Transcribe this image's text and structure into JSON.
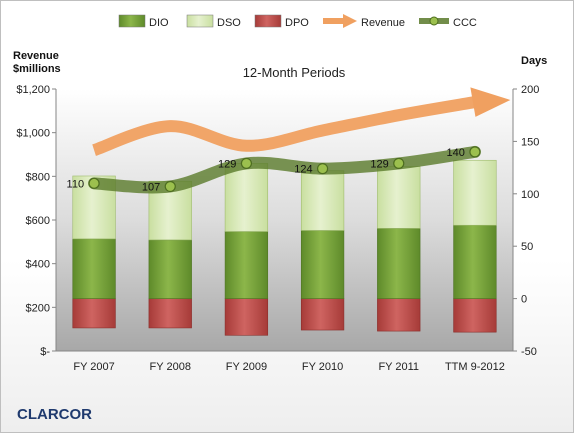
{
  "company": "CLARCOR",
  "chart_data": {
    "type": "bar",
    "title": "12-Month Periods",
    "categories": [
      "FY 2007",
      "FY 2008",
      "FY 2009",
      "FY 2010",
      "FY 2011",
      "TTM 9-2012"
    ],
    "left_axis": {
      "label_line1": "Revenue",
      "label_line2": "$millions",
      "min": 0,
      "max": 1200,
      "step": 200,
      "tick_labels": [
        "$-",
        "$200",
        "$400",
        "$600",
        "$800",
        "$1,000",
        "$1,200"
      ]
    },
    "right_axis": {
      "label": "Days",
      "min": -50,
      "max": 200,
      "step": 50,
      "tick_labels": [
        "-50",
        "0",
        "50",
        "100",
        "150",
        "200"
      ]
    },
    "legend": {
      "position": "top",
      "items": [
        {
          "name": "DIO",
          "kind": "bar",
          "color": "#76a13b"
        },
        {
          "name": "DSO",
          "kind": "bar",
          "color": "#d9eab8"
        },
        {
          "name": "DPO",
          "kind": "bar",
          "color": "#c0504d"
        },
        {
          "name": "Revenue",
          "kind": "arrow",
          "color": "#f0a060"
        },
        {
          "name": "CCC",
          "kind": "line",
          "color": "#5a7a2b"
        }
      ]
    },
    "series": [
      {
        "name": "DIO",
        "axis": "right",
        "values": [
          57,
          56,
          64,
          65,
          67,
          70
        ]
      },
      {
        "name": "DSO",
        "axis": "right",
        "values": [
          60,
          56,
          65,
          57,
          59,
          62
        ]
      },
      {
        "name": "DPO",
        "axis": "right",
        "values": [
          -28,
          -28,
          -35,
          -30,
          -31,
          -32
        ]
      },
      {
        "name": "Revenue",
        "axis": "left",
        "values": [
          920,
          1030,
          940,
          1010,
          1080,
          1140
        ]
      },
      {
        "name": "CCC",
        "axis": "right",
        "values": [
          110,
          107,
          129,
          124,
          129,
          140
        ]
      }
    ],
    "ccc_labels": [
      "110",
      "107",
      "129",
      "124",
      "129",
      "140"
    ]
  }
}
